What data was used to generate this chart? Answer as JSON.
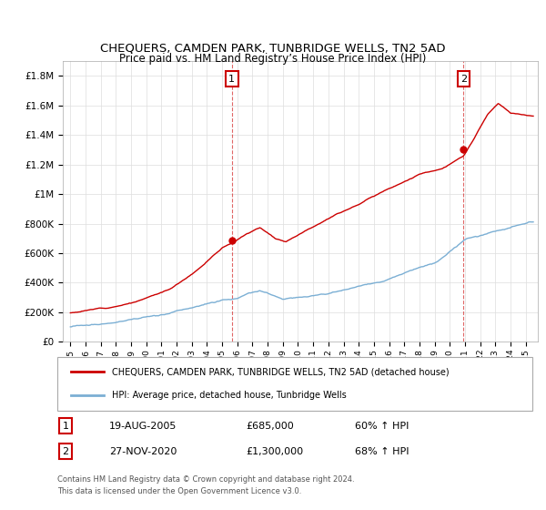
{
  "title": "CHEQUERS, CAMDEN PARK, TUNBRIDGE WELLS, TN2 5AD",
  "subtitle": "Price paid vs. HM Land Registry’s House Price Index (HPI)",
  "ylim": [
    0,
    1900000
  ],
  "yticks": [
    0,
    200000,
    400000,
    600000,
    800000,
    1000000,
    1200000,
    1400000,
    1600000,
    1800000
  ],
  "ytick_labels": [
    "£0",
    "£200K",
    "£400K",
    "£600K",
    "£800K",
    "£1M",
    "£1.2M",
    "£1.4M",
    "£1.6M",
    "£1.8M"
  ],
  "xlim_start": 1994.5,
  "xlim_end": 2025.8,
  "xticks": [
    1995,
    1996,
    1997,
    1998,
    1999,
    2000,
    2001,
    2002,
    2003,
    2004,
    2005,
    2006,
    2007,
    2008,
    2009,
    2010,
    2011,
    2012,
    2013,
    2014,
    2015,
    2016,
    2017,
    2018,
    2019,
    2020,
    2021,
    2022,
    2023,
    2024,
    2025
  ],
  "property_color": "#cc0000",
  "hpi_color": "#7bafd4",
  "marker1_x": 2005.64,
  "marker1_y": 685000,
  "marker2_x": 2020.91,
  "marker2_y": 1300000,
  "annotation1_label": "1",
  "annotation2_label": "2",
  "legend_property": "CHEQUERS, CAMDEN PARK, TUNBRIDGE WELLS, TN2 5AD (detached house)",
  "legend_hpi": "HPI: Average price, detached house, Tunbridge Wells",
  "table_rows": [
    {
      "num": "1",
      "date": "19-AUG-2005",
      "price": "£685,000",
      "hpi": "60% ↑ HPI"
    },
    {
      "num": "2",
      "date": "27-NOV-2020",
      "price": "£1,300,000",
      "hpi": "68% ↑ HPI"
    }
  ],
  "footnote": "Contains HM Land Registry data © Crown copyright and database right 2024.\nThis data is licensed under the Open Government Licence v3.0.",
  "background_color": "#ffffff",
  "grid_color": "#dddddd"
}
